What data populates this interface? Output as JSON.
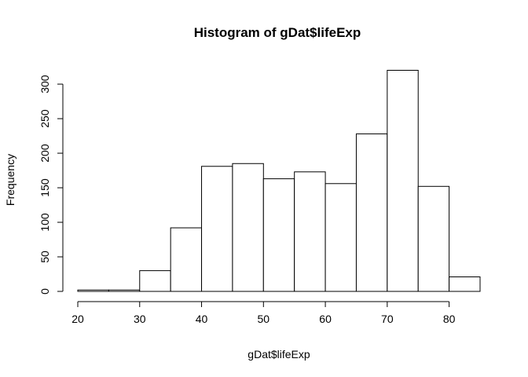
{
  "chart_data": {
    "type": "bar",
    "title": "Histogram of gDat$lifeExp",
    "xlabel": "gDat$lifeExp",
    "ylabel": "Frequency",
    "bin_edges": [
      20,
      25,
      30,
      35,
      40,
      45,
      50,
      55,
      60,
      65,
      70,
      75,
      80,
      85
    ],
    "values": [
      2,
      2,
      30,
      92,
      181,
      185,
      163,
      173,
      156,
      228,
      320,
      152,
      21
    ],
    "xlim": [
      20,
      85
    ],
    "ylim": [
      0,
      320
    ],
    "x_ticks": [
      "20",
      "30",
      "40",
      "50",
      "60",
      "70",
      "80"
    ],
    "y_ticks": [
      "0",
      "50",
      "100",
      "150",
      "200",
      "250",
      "300"
    ],
    "grid": false,
    "bar_fill": "#ffffff",
    "bar_stroke": "#000000"
  }
}
